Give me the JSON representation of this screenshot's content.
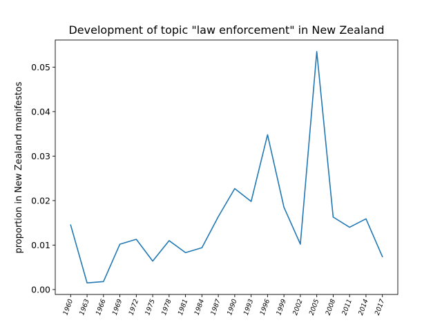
{
  "chart_data": {
    "type": "line",
    "title": "Development of topic \"law enforcement\" in New Zealand",
    "xlabel": "",
    "ylabel": "proportion in New Zealand manifestos",
    "categories": [
      "1960",
      "1963",
      "1966",
      "1969",
      "1972",
      "1975",
      "1978",
      "1981",
      "1984",
      "1987",
      "1990",
      "1993",
      "1996",
      "1999",
      "2002",
      "2005",
      "2008",
      "2011",
      "2014",
      "2017"
    ],
    "series": [
      {
        "values": [
          0.0145,
          0.0015,
          0.0018,
          0.0102,
          0.0113,
          0.0064,
          0.011,
          0.0083,
          0.0094,
          0.0164,
          0.0227,
          0.0198,
          0.0348,
          0.0185,
          0.0102,
          0.0535,
          0.0163,
          0.014,
          0.0159,
          0.0074
        ],
        "color": "#1f77b4"
      }
    ],
    "yticks": [
      0.0,
      0.01,
      0.02,
      0.03,
      0.04,
      0.05
    ],
    "ytick_labels": [
      "0.00",
      "0.01",
      "0.02",
      "0.03",
      "0.04",
      "0.05"
    ],
    "ylim": [
      -0.0011,
      0.0561
    ],
    "grid": false,
    "legend": "none"
  }
}
